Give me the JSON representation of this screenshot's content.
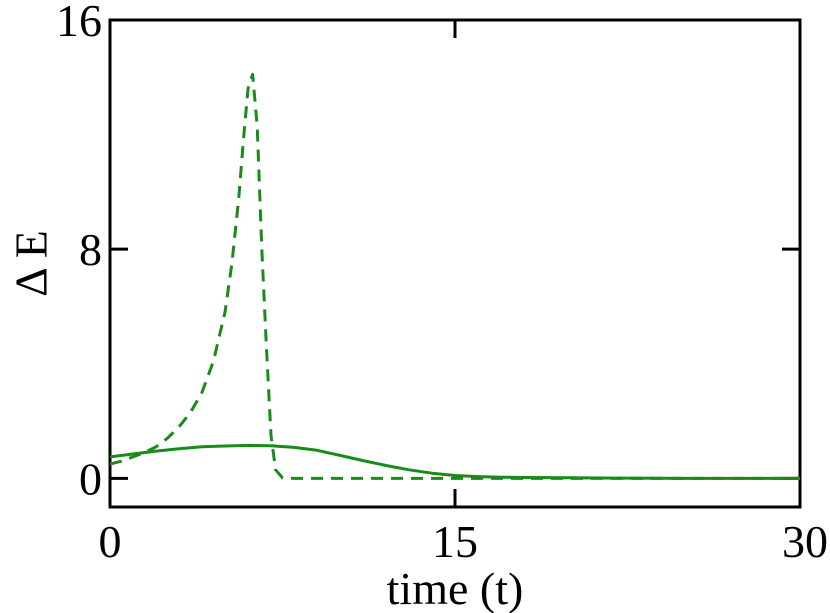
{
  "chart_data": {
    "type": "line",
    "title": "",
    "xlabel": "time (t)",
    "ylabel": "Δ E",
    "xlim": [
      0,
      30
    ],
    "ylim": [
      -1,
      16
    ],
    "xticks": [
      0,
      15,
      30
    ],
    "yticks": [
      0,
      8,
      16
    ],
    "grid": false,
    "colors": {
      "line": "#1a8a1a",
      "axis": "#000000"
    },
    "series": [
      {
        "style": "solid",
        "x": [
          0,
          1,
          2,
          3,
          4,
          5,
          6,
          7,
          8,
          9,
          10,
          11,
          12,
          13,
          14,
          15,
          16,
          17,
          18,
          20,
          22,
          25,
          30
        ],
        "y": [
          0.75,
          0.85,
          0.95,
          1.03,
          1.1,
          1.13,
          1.15,
          1.14,
          1.08,
          0.98,
          0.8,
          0.62,
          0.45,
          0.3,
          0.18,
          0.1,
          0.06,
          0.04,
          0.03,
          0.02,
          0.01,
          0.0,
          0.0
        ]
      },
      {
        "style": "dashed",
        "x": [
          0,
          0.5,
          1,
          1.5,
          2,
          2.5,
          3,
          3.5,
          4,
          4.5,
          5,
          5.3,
          5.6,
          5.8,
          6.0,
          6.2,
          6.4,
          6.6,
          6.8,
          7.0,
          7.2,
          7.5,
          8,
          10,
          15,
          20,
          30
        ],
        "y": [
          0.5,
          0.6,
          0.75,
          0.9,
          1.1,
          1.4,
          1.8,
          2.3,
          3.0,
          4.1,
          5.8,
          7.5,
          9.8,
          11.8,
          13.6,
          14.1,
          12.3,
          8.0,
          4.6,
          1.5,
          0.3,
          0.02,
          0.0,
          0.0,
          0.0,
          0.0,
          0.0
        ]
      }
    ]
  }
}
